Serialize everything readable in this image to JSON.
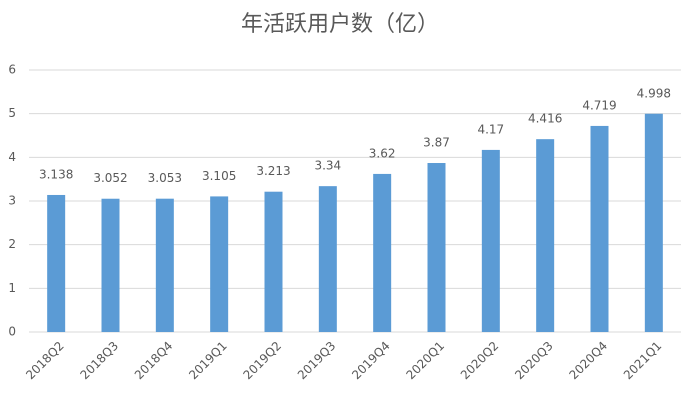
{
  "chart_data": {
    "type": "bar",
    "title": "年活跃用户数（亿）",
    "categories": [
      "2018Q2",
      "2018Q3",
      "2018Q4",
      "2019Q1",
      "2019Q2",
      "2019Q3",
      "2019Q4",
      "2020Q1",
      "2020Q2",
      "2020Q3",
      "2020Q4",
      "2021Q1"
    ],
    "values": [
      3.138,
      3.052,
      3.053,
      3.105,
      3.213,
      3.34,
      3.62,
      3.87,
      4.17,
      4.416,
      4.719,
      4.998
    ],
    "color": "#5b9bd5",
    "ylim": [
      0,
      6
    ],
    "yticks": [
      0,
      1,
      2,
      3,
      4,
      5,
      6
    ],
    "grid": true
  }
}
